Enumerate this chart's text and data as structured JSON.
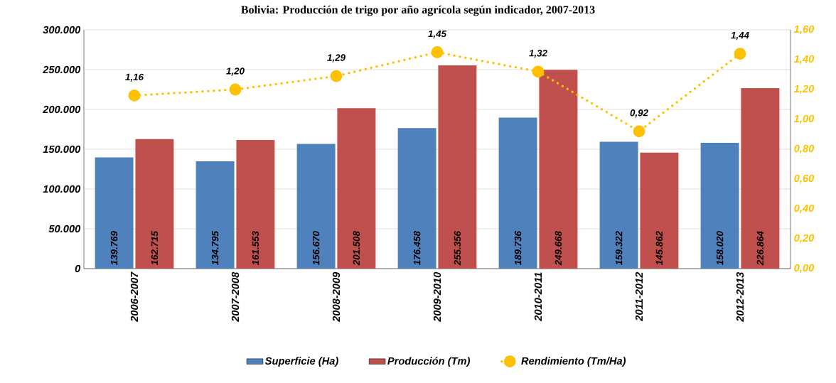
{
  "chart_data": {
    "type": "bar",
    "title": "Bolivia: Producción de trigo por año agrícola según indicador, 2007-2013",
    "categories": [
      "2006-2007",
      "2007-2008",
      "2008-2009",
      "2009-2010",
      "2010-2011",
      "2011-2012",
      "2012-2013"
    ],
    "series": [
      {
        "name": "Superficie (Ha)",
        "color": "#4f81bd",
        "values": [
          139769,
          134795,
          156670,
          176458,
          189736,
          159322,
          158020
        ],
        "value_labels": [
          "139.769",
          "134.795",
          "156.670",
          "176.458",
          "189.736",
          "159.322",
          "158.020"
        ]
      },
      {
        "name": "Producción (Tm)",
        "color": "#c0504d",
        "values": [
          162715,
          161553,
          201508,
          255356,
          249668,
          145862,
          226864
        ],
        "value_labels": [
          "162.715",
          "161.553",
          "201.508",
          "255.356",
          "249.668",
          "145.862",
          "226.864"
        ]
      },
      {
        "name": "Rendimiento (Tm/Ha)",
        "type": "line",
        "axis": "y2",
        "color": "#ffc000",
        "values": [
          1.16,
          1.2,
          1.29,
          1.45,
          1.32,
          0.92,
          1.44
        ],
        "value_labels": [
          "1,16",
          "1,20",
          "1,29",
          "1,45",
          "1,32",
          "0,92",
          "1,44"
        ]
      }
    ],
    "ylim": [
      0,
      300000
    ],
    "yticks": [
      {
        "value": 0,
        "label": "0"
      },
      {
        "value": 50000,
        "label": "50.000"
      },
      {
        "value": 100000,
        "label": "100.000"
      },
      {
        "value": 150000,
        "label": "150.000"
      },
      {
        "value": 200000,
        "label": "200.000"
      },
      {
        "value": 250000,
        "label": "250.000"
      },
      {
        "value": 300000,
        "label": "300.000"
      }
    ],
    "y2lim": [
      0,
      1.6
    ],
    "y2ticks": [
      {
        "value": 0,
        "label": "0,00"
      },
      {
        "value": 0.2,
        "label": "0,20"
      },
      {
        "value": 0.4,
        "label": "0,40"
      },
      {
        "value": 0.6,
        "label": "0,60"
      },
      {
        "value": 0.8,
        "label": "0,80"
      },
      {
        "value": 1.0,
        "label": "1,00"
      },
      {
        "value": 1.2,
        "label": "1,20"
      },
      {
        "value": 1.4,
        "label": "1,40"
      },
      {
        "value": 1.6,
        "label": "1,60"
      }
    ],
    "grid": "y",
    "legend": "bottom",
    "marker": "circle",
    "line_style": "dotted"
  }
}
